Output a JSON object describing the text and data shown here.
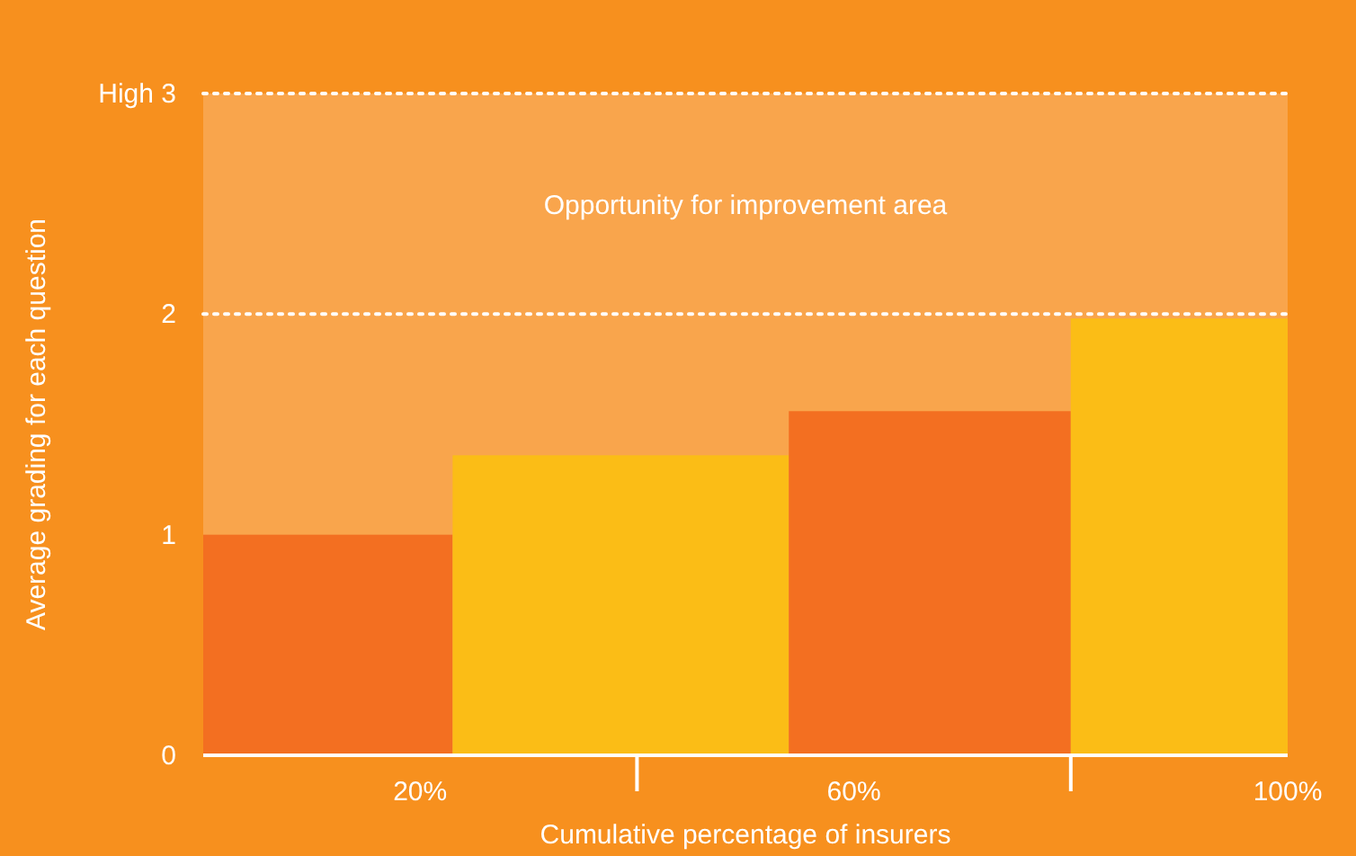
{
  "chart_data": {
    "type": "histogram",
    "xlabel": "Cumulative percentage of insurers",
    "ylabel": "Average grading for each question",
    "bins": [
      0,
      23,
      54,
      80,
      100
    ],
    "values": [
      1.0,
      1.36,
      1.56,
      1.98
    ],
    "colors": [
      "#f36f21",
      "#fbbd16",
      "#f36f21",
      "#fbbd16"
    ],
    "xlim": [
      0,
      100
    ],
    "xticks": [
      {
        "value": 20,
        "label": "20%"
      },
      {
        "value": 60,
        "label": "60%"
      },
      {
        "value": 100,
        "label": "100%"
      }
    ],
    "ylim": [
      0,
      3
    ],
    "yticks": [
      0,
      1,
      2,
      {
        "value": 3,
        "label": "High 3"
      }
    ],
    "bands": [
      {
        "axis": "y",
        "from": 0,
        "to": 3,
        "label": "Opportunity for improvement area",
        "color": "#f9a54c"
      }
    ],
    "ref_lines": [
      {
        "axis": "y",
        "value": 2,
        "color": "#ffffff",
        "line_style": "dotted"
      }
    ],
    "grid": false
  }
}
